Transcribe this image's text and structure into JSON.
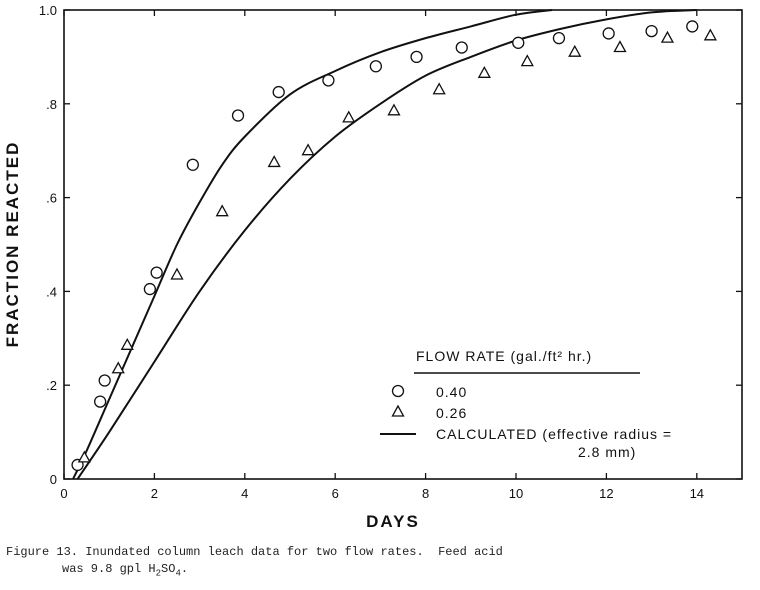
{
  "chart_data": {
    "type": "scatter",
    "xlabel": "DAYS",
    "ylabel": "FRACTION REACTED",
    "xlim": [
      0,
      15
    ],
    "ylim": [
      0,
      1.0
    ],
    "x_ticks": [
      0,
      2,
      4,
      6,
      8,
      10,
      12,
      14
    ],
    "y_ticks": [
      0,
      0.2,
      0.4,
      0.6,
      0.8,
      1.0
    ],
    "x_tick_labels": [
      "0",
      "2",
      "4",
      "6",
      "8",
      "10",
      "12",
      "14"
    ],
    "y_tick_labels": [
      "0",
      ".2",
      ".4",
      ".6",
      ".8",
      "1.0"
    ],
    "grid": false,
    "legend_position": "bottom-right",
    "legend_title": "FLOW RATE (gal./ft² hr.)",
    "series": [
      {
        "name": "0.40",
        "marker": "circle",
        "x": [
          0.3,
          0.8,
          0.9,
          1.9,
          2.05,
          2.85,
          3.85,
          4.75,
          5.85,
          6.9,
          7.8,
          8.8,
          10.05,
          10.95,
          12.05,
          13.0,
          13.9
        ],
        "y": [
          0.03,
          0.165,
          0.21,
          0.405,
          0.44,
          0.67,
          0.775,
          0.825,
          0.85,
          0.88,
          0.9,
          0.92,
          0.93,
          0.94,
          0.95,
          0.955,
          0.965
        ]
      },
      {
        "name": "0.26",
        "marker": "triangle",
        "x": [
          0.45,
          1.2,
          1.4,
          2.5,
          3.5,
          4.65,
          5.4,
          6.3,
          7.3,
          8.3,
          9.3,
          10.25,
          11.3,
          12.3,
          13.35,
          14.3
        ],
        "y": [
          0.045,
          0.235,
          0.285,
          0.435,
          0.57,
          0.675,
          0.7,
          0.77,
          0.785,
          0.83,
          0.865,
          0.89,
          0.91,
          0.92,
          0.94,
          0.945
        ]
      },
      {
        "name": "CALCULATED (effective radius = 2.8 mm)",
        "legend_label_lines": [
          "CALCULATED (effective radius =",
          "2.8 mm)"
        ],
        "marker": "line",
        "curves": [
          {
            "for_flow_rate": "0.40",
            "x": [
              0.2,
              0.5,
              1.0,
              1.5,
              2.0,
              2.5,
              3.0,
              3.5,
              4.0,
              5.0,
              6.0,
              7.0,
              8.0,
              9.0,
              10.0,
              10.8
            ],
            "y": [
              0.0,
              0.06,
              0.17,
              0.28,
              0.39,
              0.5,
              0.59,
              0.67,
              0.73,
              0.82,
              0.87,
              0.91,
              0.94,
              0.965,
              0.99,
              1.0
            ]
          },
          {
            "for_flow_rate": "0.26",
            "x": [
              0.3,
              1.0,
              2.0,
              3.0,
              4.0,
              5.0,
              6.0,
              7.0,
              8.0,
              9.0,
              10.0,
              11.0,
              12.0,
              13.0,
              14.0
            ],
            "y": [
              0.0,
              0.1,
              0.25,
              0.4,
              0.53,
              0.64,
              0.73,
              0.8,
              0.86,
              0.9,
              0.935,
              0.96,
              0.98,
              0.995,
              1.0
            ]
          }
        ]
      }
    ]
  },
  "caption": {
    "line1": "Figure 13. Inundated column leach data for two flow rates.  Feed acid",
    "line2_before": "was 9.8 gpl H",
    "line2_sub1": "2",
    "line2_mid": "SO",
    "line2_sub2": "4",
    "line2_after": "."
  }
}
